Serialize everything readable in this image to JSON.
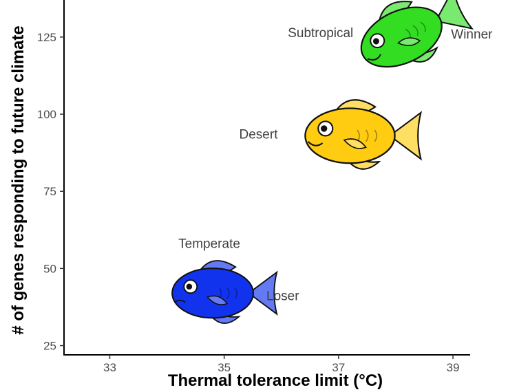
{
  "chart_data": {
    "type": "scatter",
    "title": "",
    "xlabel": "Thermal tolerance limit (°C)",
    "ylabel": "# of genes responding to future climate",
    "xlim": [
      32.2,
      39.3
    ],
    "ylim": [
      22,
      137
    ],
    "x_ticks": [
      "33",
      "35",
      "37",
      "39"
    ],
    "y_ticks": [
      "25",
      "50",
      "75",
      "100",
      "125"
    ],
    "grid": false,
    "points": [
      {
        "label": "Subtropical",
        "x": 38.1,
        "y": 125,
        "color": "#33dd22",
        "tag": "Winner"
      },
      {
        "label": "Desert",
        "x": 37.2,
        "y": 93,
        "color": "#ffcc11",
        "tag": ""
      },
      {
        "label": "Temperate",
        "x": 34.8,
        "y": 42,
        "color": "#1133ee",
        "tag": "Loser"
      }
    ]
  }
}
